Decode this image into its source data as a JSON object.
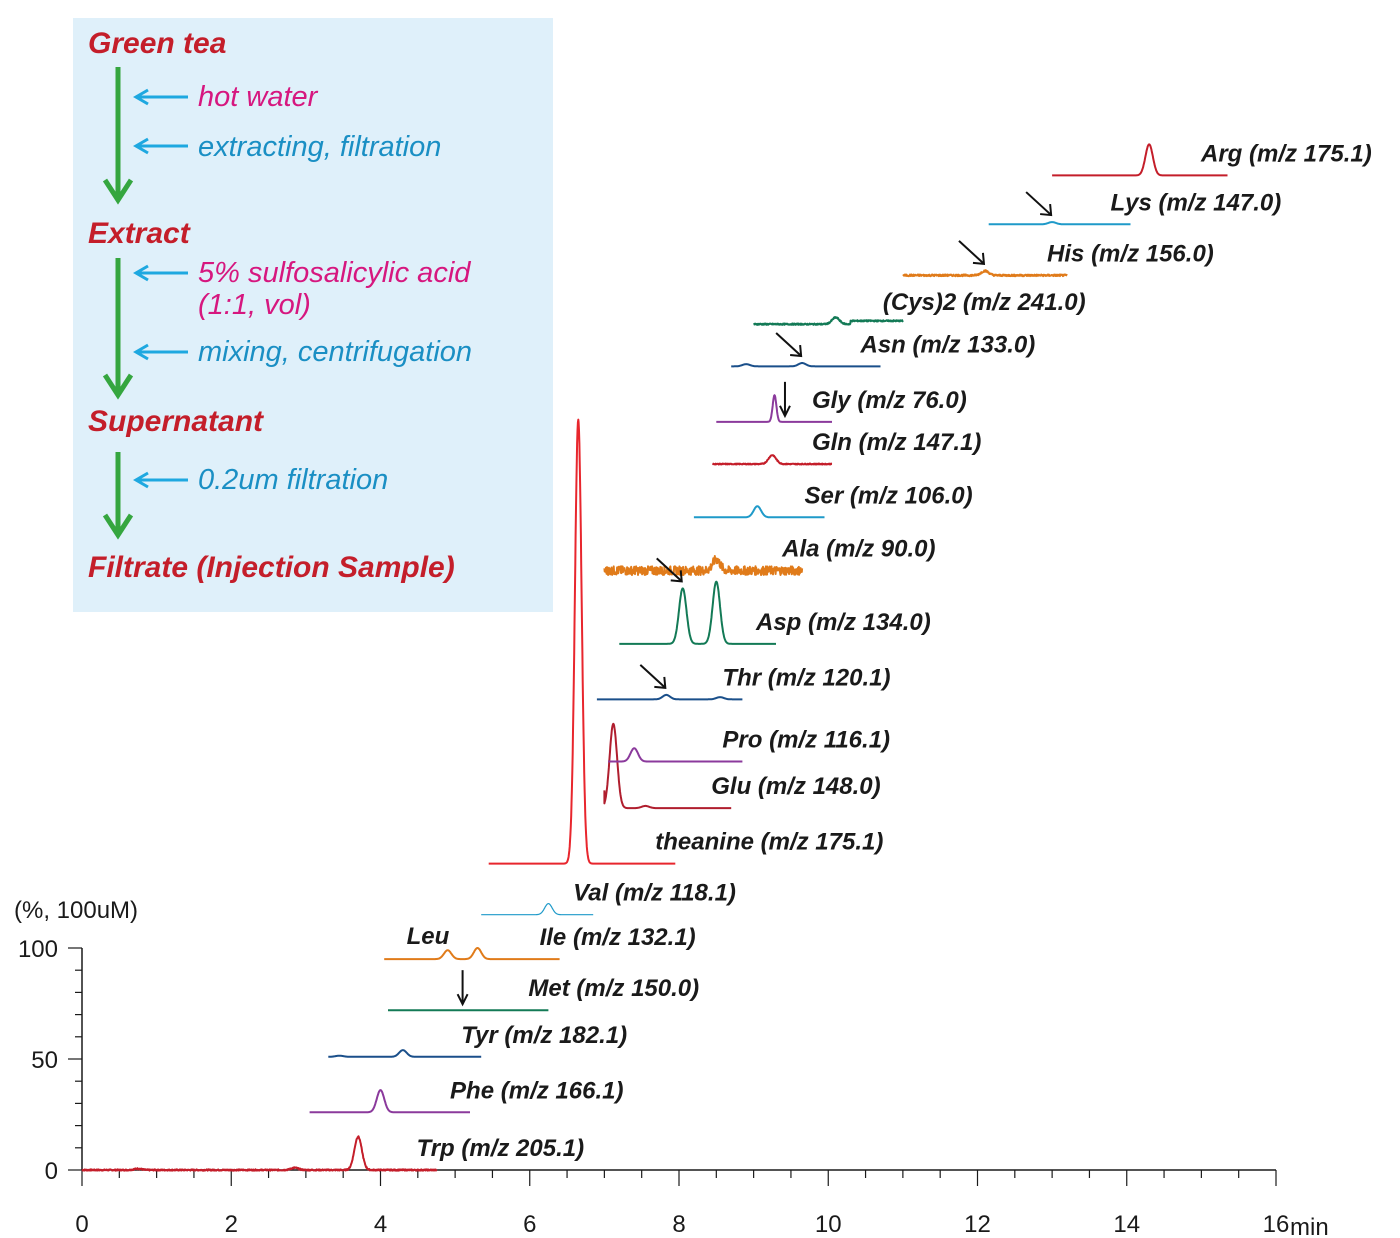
{
  "chart_data": {
    "type": "line",
    "title": "",
    "xlabel": "min",
    "ylabel": "(%, 100uM)",
    "xlim": [
      0,
      16
    ],
    "ylim": [
      0,
      100
    ],
    "x_ticks": [
      "0",
      "2",
      "4",
      "6",
      "8",
      "10",
      "12",
      "14",
      "16"
    ],
    "y_ticks": [
      "0",
      "50",
      "100"
    ],
    "x_unit": "min",
    "grid": false,
    "series": [
      {
        "name": "Trp (m/z 205.1)",
        "color": "#c41e2a",
        "offset_pct": 0,
        "x_start": 0.0,
        "x_end": 4.75,
        "peaks": [
          {
            "rt": 3.7,
            "height_pct": 15
          },
          {
            "rt": 2.85,
            "height_pct": 1
          },
          {
            "rt": 0.75,
            "height_pct": 0.6
          }
        ],
        "noise": 0.3
      },
      {
        "name": "Phe (m/z 166.1)",
        "color": "#8b3a9c",
        "offset_pct": 26,
        "x_start": 3.05,
        "x_end": 5.2,
        "peaks": [
          {
            "rt": 4.0,
            "height_pct": 10
          }
        ],
        "noise": 0
      },
      {
        "name": "Tyr (m/z 182.1)",
        "color": "#1a4f8a",
        "offset_pct": 51,
        "x_start": 3.3,
        "x_end": 5.35,
        "peaks": [
          {
            "rt": 4.3,
            "height_pct": 3
          },
          {
            "rt": 3.45,
            "height_pct": 0.5
          }
        ],
        "noise": 0
      },
      {
        "name": "Met (m/z 150.0)",
        "color": "#137a56",
        "offset_pct": 72,
        "x_start": 4.1,
        "x_end": 6.25,
        "peaks": [],
        "noise": 0,
        "arrow_rt": 5.1
      },
      {
        "name": "Ile (m/z 132.1)",
        "color": "#e07b1a",
        "offset_pct": 95,
        "x_start": 4.05,
        "x_end": 6.4,
        "peaks": [
          {
            "rt": 4.9,
            "height_pct": 4
          },
          {
            "rt": 5.3,
            "height_pct": 5
          }
        ],
        "noise": 0,
        "extra_label": "Leu"
      },
      {
        "name": "Val (m/z 118.1)",
        "color": "#1f9ac9",
        "offset_pct": 115,
        "x_start": 5.35,
        "x_end": 6.85,
        "peaks": [
          {
            "rt": 6.25,
            "height_pct": 5
          }
        ],
        "noise": 0,
        "thin": true
      },
      {
        "name": "theanine (m/z 175.1)",
        "color": "#e8262d",
        "offset_pct": 138,
        "x_start": 5.45,
        "x_end": 7.95,
        "peaks": [
          {
            "rt": 6.65,
            "height_pct": 200
          }
        ],
        "noise": 0
      },
      {
        "name": "Glu (m/z 148.0)",
        "color": "#b01e2e",
        "offset_pct": 163,
        "x_start": 7.0,
        "x_end": 8.7,
        "peaks": [
          {
            "rt": 7.12,
            "height_pct": 38
          },
          {
            "rt": 7.55,
            "height_pct": 1
          }
        ],
        "noise": 0,
        "sharp_start": true
      },
      {
        "name": "Pro (m/z 116.1)",
        "color": "#8b3a9c",
        "offset_pct": 184,
        "x_start": 7.05,
        "x_end": 8.85,
        "peaks": [
          {
            "rt": 7.4,
            "height_pct": 6
          }
        ],
        "noise": 0
      },
      {
        "name": "Thr (m/z 120.1)",
        "color": "#1a4f8a",
        "offset_pct": 212,
        "x_start": 6.9,
        "x_end": 8.85,
        "peaks": [
          {
            "rt": 7.83,
            "height_pct": 2
          },
          {
            "rt": 8.55,
            "height_pct": 1
          }
        ],
        "noise": 0,
        "arrow_rt": 7.83
      },
      {
        "name": "Asp (m/z 134.0)",
        "color": "#137a56",
        "offset_pct": 237,
        "x_start": 7.2,
        "x_end": 9.3,
        "peaks": [
          {
            "rt": 8.05,
            "height_pct": 25
          },
          {
            "rt": 8.5,
            "height_pct": 28
          }
        ],
        "noise": 0,
        "arrow_rt": 8.05
      },
      {
        "name": "Ala (m/z 90.0)",
        "color": "#e07b1a",
        "offset_pct": 270,
        "x_start": 7.0,
        "x_end": 9.65,
        "peaks": [
          {
            "rt": 8.5,
            "height_pct": 5
          }
        ],
        "noise": 2.0
      },
      {
        "name": "Ser (m/z 106.0)",
        "color": "#1f9ac9",
        "offset_pct": 294,
        "x_start": 8.2,
        "x_end": 9.95,
        "peaks": [
          {
            "rt": 9.05,
            "height_pct": 5
          }
        ],
        "noise": 0
      },
      {
        "name": "Gln (m/z 147.1)",
        "color": "#c41e2a",
        "offset_pct": 318,
        "x_start": 8.45,
        "x_end": 10.05,
        "peaks": [
          {
            "rt": 9.25,
            "height_pct": 4
          }
        ],
        "noise": 0.2
      },
      {
        "name": "Gly (m/z 76.0)",
        "color": "#8b3a9c",
        "offset_pct": 337,
        "x_start": 8.5,
        "x_end": 10.05,
        "peaks": [
          {
            "rt": 9.28,
            "height_pct": 12
          }
        ],
        "noise": 0,
        "arrow_rt": 9.42,
        "narrow": true
      },
      {
        "name": "Asn (m/z 133.0)",
        "color": "#1a4f8a",
        "offset_pct": 362,
        "x_start": 8.7,
        "x_end": 10.7,
        "peaks": [
          {
            "rt": 9.65,
            "height_pct": 1.5
          },
          {
            "rt": 8.9,
            "height_pct": 1
          }
        ],
        "noise": 0,
        "arrow_rt": 9.65
      },
      {
        "name": "(Cys)2 (m/z 241.0)",
        "color": "#137a56",
        "offset_pct": 381,
        "x_start": 9.0,
        "x_end": 11.0,
        "peaks": [
          {
            "rt": 10.1,
            "height_pct": 3
          }
        ],
        "noise": 0.3,
        "step_after": 10.3
      },
      {
        "name": "His (m/z 156.0)",
        "color": "#e07b1a",
        "offset_pct": 403,
        "x_start": 11.0,
        "x_end": 13.2,
        "peaks": [
          {
            "rt": 12.1,
            "height_pct": 2
          }
        ],
        "noise": 0.4,
        "arrow_rt": 12.1
      },
      {
        "name": "Lys (m/z 147.0)",
        "color": "#1f9ac9",
        "offset_pct": 426,
        "x_start": 12.15,
        "x_end": 14.05,
        "peaks": [
          {
            "rt": 13.0,
            "height_pct": 1
          }
        ],
        "noise": 0,
        "arrow_rt": 13.0
      },
      {
        "name": "Arg (m/z 175.1)",
        "color": "#c41e2a",
        "offset_pct": 448,
        "x_start": 13.0,
        "x_end": 15.35,
        "peaks": [
          {
            "rt": 14.3,
            "height_pct": 14
          }
        ],
        "noise": 0
      }
    ]
  },
  "flowchart": {
    "stages": [
      "Green tea",
      "Extract",
      "Supernatant",
      "Filtrate (Injection Sample)"
    ],
    "steps": [
      {
        "text": "hot water",
        "color": "#d6177f"
      },
      {
        "text": "extracting, filtration",
        "color": "#1a8fc4"
      },
      {
        "text": "5% sulfosalicylic acid",
        "color": "#d6177f"
      },
      {
        "text": "(1:1, vol)",
        "color": "#d6177f"
      },
      {
        "text": "mixing, centrifugation",
        "color": "#1a8fc4"
      },
      {
        "text": "0.2um filtration",
        "color": "#1a8fc4"
      }
    ],
    "stage_color": "#c41e2a",
    "arrow_color": "#35a63f",
    "small_arrow_color": "#1ea8e0",
    "box_color": "#dff0fa"
  }
}
